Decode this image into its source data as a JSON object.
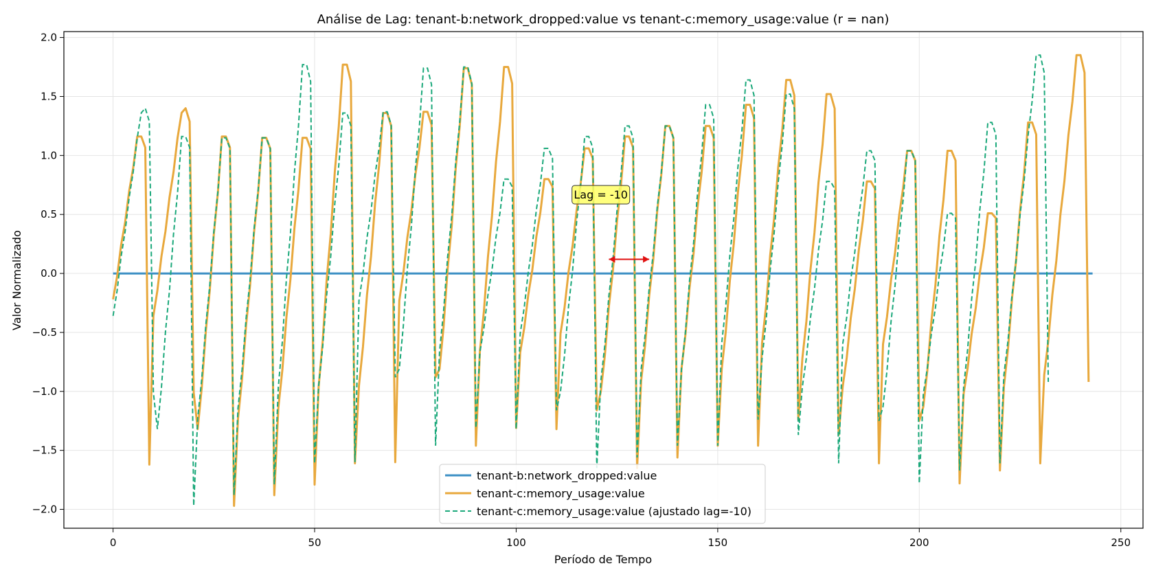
{
  "chart_data": {
    "type": "line",
    "title": "Análise de Lag: tenant-b:network_dropped:value vs tenant-c:memory_usage:value (r = nan)",
    "xlabel": "Período de Tempo",
    "ylabel": "Valor Normalizado",
    "xlim": [
      -12.2,
      255.5
    ],
    "ylim": [
      -2.16,
      2.05
    ],
    "xticks": [
      0,
      50,
      100,
      150,
      200,
      250
    ],
    "yticks": [
      -2.0,
      -1.5,
      -1.0,
      -0.5,
      0.0,
      0.5,
      1.0,
      1.5,
      2.0
    ],
    "ytick_labels": [
      "−2.0",
      "−1.5",
      "−1.0",
      "−0.5",
      "0.0",
      "0.5",
      "1.0",
      "1.5",
      "2.0"
    ],
    "grid": true,
    "legend_position": "lower center",
    "annotation": {
      "text": "Lag = -10",
      "x": 121,
      "y": 0.67,
      "arrow_from": 123,
      "arrow_to": 133,
      "arrow_y": 0.12
    },
    "series": [
      {
        "name": "tenant-b:network_dropped:value",
        "color": "#3b8fc4",
        "style": "solid",
        "x_start": 0,
        "x_end": 243,
        "y": 0
      },
      {
        "name": "tenant-c:memory_usage:value",
        "color": "#e8a83c",
        "style": "solid",
        "cycles": [
          {
            "start": 0,
            "peak": 1.16,
            "valley": -1.62,
            "period": 10
          },
          {
            "start": 10,
            "peak": 1.4,
            "valley": -1.01,
            "period": 11
          },
          {
            "start": 21,
            "peak": 1.16,
            "valley": -1.97,
            "period": 10
          },
          {
            "start": 31,
            "peak": 1.15,
            "valley": -1.88,
            "period": 10
          },
          {
            "start": 41,
            "peak": 1.15,
            "valley": -1.79,
            "period": 10
          },
          {
            "start": 51,
            "peak": 1.77,
            "valley": -1.61,
            "period": 10
          },
          {
            "start": 61,
            "peak": 1.36,
            "valley": -1.6,
            "period": 10
          },
          {
            "start": 71,
            "peak": 1.37,
            "valley": -0.88,
            "period": 10
          },
          {
            "start": 81,
            "peak": 1.74,
            "valley": -1.46,
            "period": 10
          },
          {
            "start": 91,
            "peak": 1.75,
            "valley": -1.31,
            "period": 10
          },
          {
            "start": 101,
            "peak": 0.8,
            "valley": -1.32,
            "period": 10
          },
          {
            "start": 111,
            "peak": 1.06,
            "valley": -1.16,
            "period": 10
          },
          {
            "start": 121,
            "peak": 1.16,
            "valley": -1.65,
            "period": 10
          },
          {
            "start": 131,
            "peak": 1.25,
            "valley": -1.56,
            "period": 10
          },
          {
            "start": 141,
            "peak": 1.25,
            "valley": -1.46,
            "period": 10
          },
          {
            "start": 151,
            "peak": 1.43,
            "valley": -1.46,
            "period": 10
          },
          {
            "start": 161,
            "peak": 1.64,
            "valley": -1.24,
            "period": 10
          },
          {
            "start": 171,
            "peak": 1.52,
            "valley": -1.37,
            "period": 10
          },
          {
            "start": 181,
            "peak": 0.78,
            "valley": -1.61,
            "period": 10
          },
          {
            "start": 191,
            "peak": 1.04,
            "valley": -1.25,
            "period": 10
          },
          {
            "start": 201,
            "peak": 1.04,
            "valley": -1.78,
            "period": 10
          },
          {
            "start": 211,
            "peak": 0.51,
            "valley": -1.67,
            "period": 10
          },
          {
            "start": 221,
            "peak": 1.28,
            "valley": -1.61,
            "period": 10
          },
          {
            "start": 231,
            "peak": 1.85,
            "valley": -1.51,
            "period": 12
          }
        ],
        "end_value": -0.92
      },
      {
        "name": "tenant-c:memory_usage:value (ajustado lag=-10)",
        "color": "#1aa87a",
        "style": "dashed",
        "shift": -10,
        "x_end": 233
      }
    ]
  }
}
